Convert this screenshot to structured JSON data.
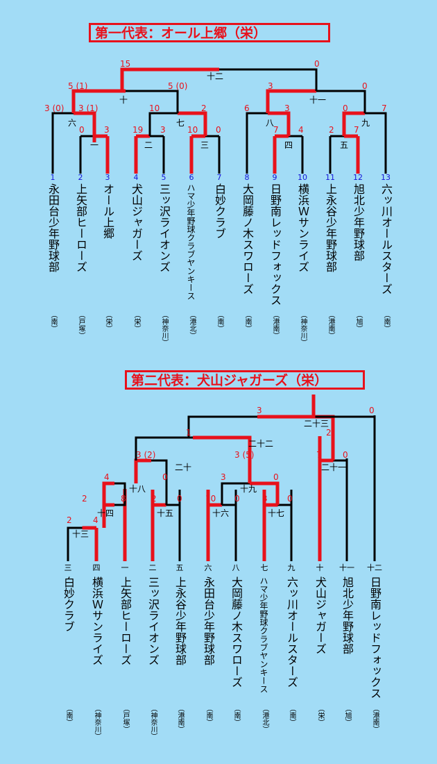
{
  "colors": {
    "background": "#a2dcf6",
    "winner": "#e8111b",
    "line": "#000000",
    "team_number": "#1414d8"
  },
  "section1": {
    "title": "第一代表：オール上郷（栄）",
    "teams": [
      {
        "num": "1",
        "name": "永田台少年野球部",
        "region": "（南）"
      },
      {
        "num": "2",
        "name": "上矢部ヒーローズ",
        "region": "（戸塚）"
      },
      {
        "num": "3",
        "name": "オール上郷",
        "region": "（栄）"
      },
      {
        "num": "4",
        "name": "犬山ジャガーズ",
        "region": "（栄）"
      },
      {
        "num": "5",
        "name": "三ッ沢ライオンズ",
        "region": "（神奈川）"
      },
      {
        "num": "6",
        "name": "ハマ少年野球クラブヤンキース",
        "region": "（港北）"
      },
      {
        "num": "7",
        "name": "白妙クラブ",
        "region": "（南）"
      },
      {
        "num": "8",
        "name": "大岡藤ノ木スワローズ",
        "region": "（南）"
      },
      {
        "num": "9",
        "name": "日野南レッドフォックス",
        "region": "（港南）"
      },
      {
        "num": "10",
        "name": "横浜Ｗサンライズ",
        "region": "（神奈川）"
      },
      {
        "num": "11",
        "name": "上永谷少年野球部",
        "region": "（港南）"
      },
      {
        "num": "12",
        "name": "旭北少年野球部",
        "region": "（旭）"
      },
      {
        "num": "13",
        "name": "六ッ川オールスターズ",
        "region": "（南）"
      }
    ],
    "rounds": [
      "一",
      "二",
      "三",
      "四",
      "五",
      "六",
      "七",
      "八",
      "九",
      "十",
      "十一",
      "十二"
    ],
    "scores": [
      "0",
      "3",
      "19",
      "3",
      "10",
      "0",
      "7",
      "4",
      "2",
      "7",
      "3 (0)",
      "3 (1)",
      "10",
      "2",
      "6",
      "3",
      "0",
      "7",
      "5 (1)",
      "5 (0)",
      "3",
      "0",
      "15",
      "0"
    ]
  },
  "section2": {
    "title": "第二代表：犬山ジャガーズ（栄）",
    "teams": [
      {
        "num": "三",
        "name": "白妙クラブ",
        "region": "（南）"
      },
      {
        "num": "四",
        "name": "横浜Ｗサンライズ",
        "region": "（神奈川）"
      },
      {
        "num": "一",
        "name": "上矢部ヒーローズ",
        "region": "（戸塚）"
      },
      {
        "num": "二",
        "name": "三ッ沢ライオンズ",
        "region": "（神奈川）"
      },
      {
        "num": "五",
        "name": "上永谷少年野球部",
        "region": "（港南）"
      },
      {
        "num": "六",
        "name": "永田台少年野球部",
        "region": "（南）"
      },
      {
        "num": "八",
        "name": "大岡藤ノ木スワローズ",
        "region": "（南）"
      },
      {
        "num": "七",
        "name": "ハマ少年野球クラブヤンキース",
        "region": "（港北）"
      },
      {
        "num": "九",
        "name": "六ッ川オールスターズ",
        "region": "（南）"
      },
      {
        "num": "十",
        "name": "犬山ジャガーズ",
        "region": "（栄）"
      },
      {
        "num": "十一",
        "name": "旭北少年野球部",
        "region": "（旭）"
      },
      {
        "num": "十二",
        "name": "日野南レッドフォックス",
        "region": "（港南）"
      }
    ],
    "rounds": [
      "十三",
      "十四",
      "十五",
      "十六",
      "十七",
      "十八",
      "十九",
      "二十",
      "二十一",
      "二十二",
      "二十三"
    ],
    "scores": [
      "2",
      "4",
      "2",
      "8",
      "2",
      "0",
      "10",
      "0",
      "3",
      "0",
      "4",
      "0",
      "3",
      "0",
      "3 (2)",
      "3 (5)",
      "7",
      "0",
      "1",
      "2",
      "3",
      "0"
    ]
  }
}
